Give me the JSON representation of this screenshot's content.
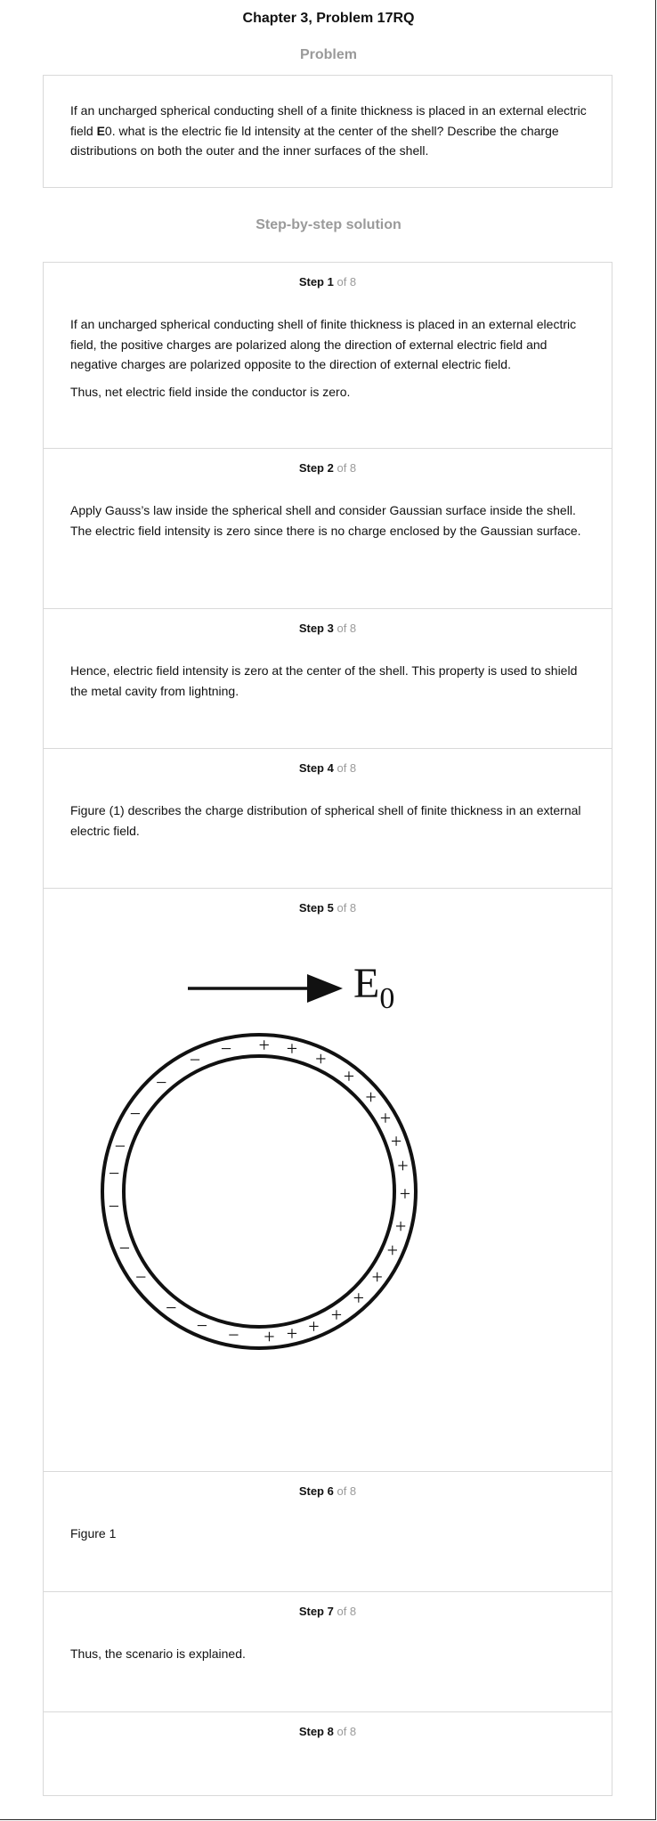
{
  "header": {
    "title": "Chapter 3, Problem 17RQ"
  },
  "problem": {
    "heading": "Problem",
    "text_before_bold": "If an uncharged spherical conducting shell of a finite thickness is placed in an external electric field ",
    "bold": "E",
    "text_after_bold": "0. what is the electric fie ld intensity at the center of the shell? Describe the charge distributions on both the outer and the inner surfaces of the shell."
  },
  "solution": {
    "heading": "Step-by-step solution",
    "steps": [
      {
        "label": "Step 1",
        "of": "of 8",
        "paragraphs": [
          "If an uncharged spherical conducting shell of finite thickness is placed in an external electric field, the positive charges are polarized along the direction of external electric field and negative charges are polarized opposite to the direction of external electric field.",
          "Thus, net electric field inside the conductor is zero."
        ]
      },
      {
        "label": "Step 2",
        "of": "of 8",
        "paragraphs": [
          "Apply Gauss’s law inside the spherical shell and consider Gaussian surface inside the shell. The electric field intensity is zero since there is no charge enclosed by the Gaussian surface."
        ]
      },
      {
        "label": "Step 3",
        "of": "of 8",
        "paragraphs": [
          "Hence, electric field intensity is zero at the center of the shell. This property is used to shield the metal cavity from lightning."
        ]
      },
      {
        "label": "Step 4",
        "of": "of 8",
        "paragraphs": [
          "Figure (1) describes the charge distribution of spherical shell of finite thickness in an external electric field."
        ]
      },
      {
        "label": "Step 5",
        "of": "of 8",
        "figure": {
          "field_label": "E",
          "field_subscript": "0",
          "negative_symbol": "−",
          "positive_symbol": "+"
        }
      },
      {
        "label": "Step 6",
        "of": "of 8",
        "paragraphs": [
          "Figure 1"
        ]
      },
      {
        "label": "Step 7",
        "of": "of 8",
        "paragraphs": [
          "Thus, the scenario is explained."
        ]
      },
      {
        "label": "Step 8",
        "of": "of 8",
        "paragraphs": []
      }
    ]
  }
}
